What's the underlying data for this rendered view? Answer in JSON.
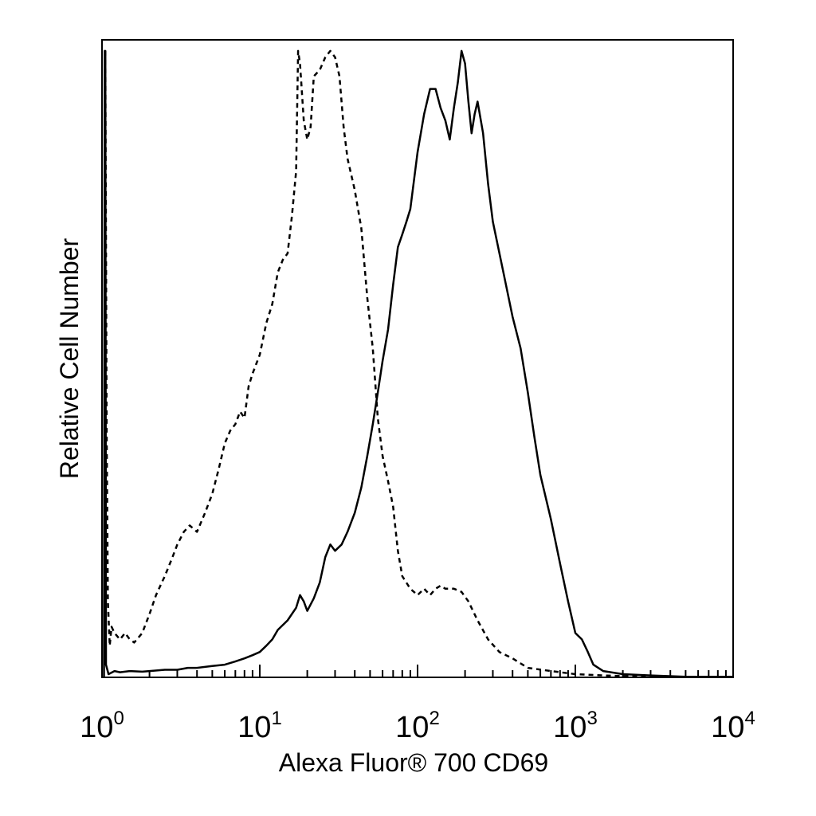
{
  "chart_data": {
    "type": "line",
    "title": "",
    "xlabel": "Alexa Fluor® 700 CD69",
    "ylabel": "Relative Cell Number",
    "x_scale": "log",
    "xlim": [
      1,
      10000
    ],
    "ylim": [
      0,
      100
    ],
    "grid": false,
    "legend": "none",
    "x_ticks": [
      {
        "base": "10",
        "exp": "0",
        "value": 1
      },
      {
        "base": "10",
        "exp": "1",
        "value": 10
      },
      {
        "base": "10",
        "exp": "2",
        "value": 100
      },
      {
        "base": "10",
        "exp": "3",
        "value": 1000
      },
      {
        "base": "10",
        "exp": "4",
        "value": 10000
      }
    ],
    "series": [
      {
        "style": "dashed",
        "color": "#000000",
        "points": [
          [
            1.05,
            99
          ],
          [
            1.07,
            40
          ],
          [
            1.09,
            12
          ],
          [
            1.12,
            5
          ],
          [
            1.15,
            8
          ],
          [
            1.2,
            7
          ],
          [
            1.3,
            6
          ],
          [
            1.4,
            7
          ],
          [
            1.5,
            6
          ],
          [
            1.6,
            5.5
          ],
          [
            1.8,
            7
          ],
          [
            2.0,
            10
          ],
          [
            2.2,
            13
          ],
          [
            2.5,
            16
          ],
          [
            2.8,
            19
          ],
          [
            3.0,
            21
          ],
          [
            3.3,
            23
          ],
          [
            3.6,
            24
          ],
          [
            4.0,
            23
          ],
          [
            4.5,
            26
          ],
          [
            5.0,
            29
          ],
          [
            5.5,
            33
          ],
          [
            6.0,
            37
          ],
          [
            6.5,
            39
          ],
          [
            7.0,
            40
          ],
          [
            7.5,
            42
          ],
          [
            8.0,
            41
          ],
          [
            8.5,
            46
          ],
          [
            9.0,
            48
          ],
          [
            10.0,
            51
          ],
          [
            11.0,
            56
          ],
          [
            12.0,
            59
          ],
          [
            13.0,
            64
          ],
          [
            14.0,
            66
          ],
          [
            15.0,
            67
          ],
          [
            16.0,
            73
          ],
          [
            17.0,
            80
          ],
          [
            17.5,
            99
          ],
          [
            18.0,
            97
          ],
          [
            19.0,
            88
          ],
          [
            20.0,
            85
          ],
          [
            21.0,
            87
          ],
          [
            22.0,
            95
          ],
          [
            24.0,
            96
          ],
          [
            26.0,
            98
          ],
          [
            28.0,
            99
          ],
          [
            30.0,
            98
          ],
          [
            32.0,
            95
          ],
          [
            34.0,
            87
          ],
          [
            36.0,
            82
          ],
          [
            40.0,
            77
          ],
          [
            44.0,
            71
          ],
          [
            48.0,
            60
          ],
          [
            52.0,
            52
          ],
          [
            56.0,
            41
          ],
          [
            60.0,
            35
          ],
          [
            65.0,
            31
          ],
          [
            70.0,
            27
          ],
          [
            75.0,
            20
          ],
          [
            80.0,
            16
          ],
          [
            90.0,
            14
          ],
          [
            100.0,
            13
          ],
          [
            110.0,
            14
          ],
          [
            120.0,
            13
          ],
          [
            130.0,
            14
          ],
          [
            140.0,
            14.5
          ],
          [
            150.0,
            14
          ],
          [
            170.0,
            14
          ],
          [
            190.0,
            13.5
          ],
          [
            210.0,
            12
          ],
          [
            240.0,
            9
          ],
          [
            280.0,
            6
          ],
          [
            330.0,
            4
          ],
          [
            400.0,
            3
          ],
          [
            500.0,
            1.5
          ],
          [
            700.0,
            1
          ],
          [
            1000.0,
            0.5
          ],
          [
            1500.0,
            0.3
          ],
          [
            2000.0,
            0.2
          ],
          [
            4000.0,
            0.1
          ],
          [
            10000.0,
            0.1
          ]
        ]
      },
      {
        "style": "solid",
        "color": "#000000",
        "points": [
          [
            1.03,
            0
          ],
          [
            1.04,
            99
          ],
          [
            1.05,
            99
          ],
          [
            1.06,
            2
          ],
          [
            1.1,
            0.5
          ],
          [
            1.2,
            1
          ],
          [
            1.3,
            0.8
          ],
          [
            1.5,
            1
          ],
          [
            1.8,
            0.9
          ],
          [
            2.0,
            1
          ],
          [
            2.5,
            1.2
          ],
          [
            3.0,
            1.2
          ],
          [
            3.5,
            1.5
          ],
          [
            4.0,
            1.5
          ],
          [
            5.0,
            1.8
          ],
          [
            6.0,
            2.0
          ],
          [
            7.0,
            2.5
          ],
          [
            8.0,
            3.0
          ],
          [
            9.0,
            3.5
          ],
          [
            10.0,
            4
          ],
          [
            11.0,
            5
          ],
          [
            12.0,
            6
          ],
          [
            13.0,
            7.5
          ],
          [
            15.0,
            9
          ],
          [
            17.0,
            11
          ],
          [
            18.0,
            13
          ],
          [
            19.0,
            12
          ],
          [
            20.0,
            10.5
          ],
          [
            22.0,
            12.5
          ],
          [
            24.0,
            15
          ],
          [
            26.0,
            19
          ],
          [
            28.0,
            21
          ],
          [
            30.0,
            20
          ],
          [
            33.0,
            21
          ],
          [
            36.0,
            23
          ],
          [
            40.0,
            26
          ],
          [
            44.0,
            30
          ],
          [
            48.0,
            35
          ],
          [
            52.0,
            40
          ],
          [
            56.0,
            45
          ],
          [
            60.0,
            50
          ],
          [
            65.0,
            55
          ],
          [
            70.0,
            62
          ],
          [
            75.0,
            68
          ],
          [
            80.0,
            70
          ],
          [
            85.0,
            72
          ],
          [
            90.0,
            74
          ],
          [
            100.0,
            83
          ],
          [
            110.0,
            89
          ],
          [
            120.0,
            93
          ],
          [
            130.0,
            93
          ],
          [
            140.0,
            90
          ],
          [
            150.0,
            88
          ],
          [
            160.0,
            85
          ],
          [
            170.0,
            90
          ],
          [
            180.0,
            94
          ],
          [
            190.0,
            99
          ],
          [
            200.0,
            97
          ],
          [
            210.0,
            91
          ],
          [
            220.0,
            86
          ],
          [
            230.0,
            89
          ],
          [
            240.0,
            91
          ],
          [
            260.0,
            86
          ],
          [
            280.0,
            78
          ],
          [
            300.0,
            72
          ],
          [
            350.0,
            64
          ],
          [
            400.0,
            57
          ],
          [
            450.0,
            52
          ],
          [
            500.0,
            45
          ],
          [
            550.0,
            38
          ],
          [
            600.0,
            32
          ],
          [
            700.0,
            25
          ],
          [
            800.0,
            18
          ],
          [
            900.0,
            12
          ],
          [
            1000.0,
            7
          ],
          [
            1100.0,
            6
          ],
          [
            1200.0,
            4
          ],
          [
            1300.0,
            2
          ],
          [
            1500.0,
            1
          ],
          [
            2000.0,
            0.5
          ],
          [
            3000.0,
            0.3
          ],
          [
            5000.0,
            0.1
          ],
          [
            10000.0,
            0.1
          ]
        ]
      }
    ]
  }
}
